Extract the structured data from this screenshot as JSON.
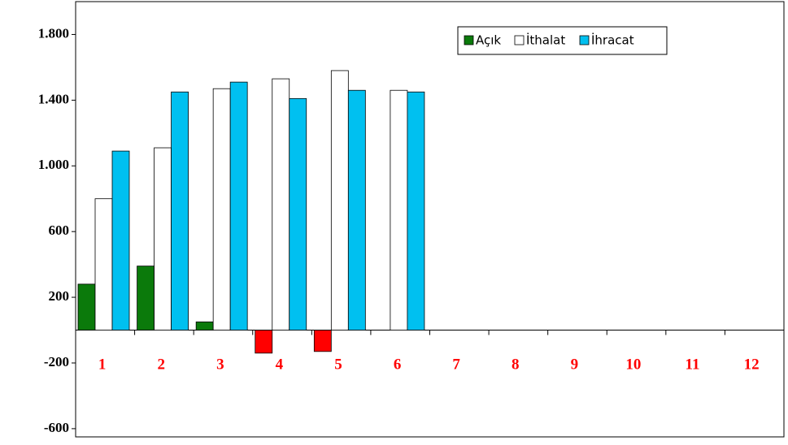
{
  "chart_data": {
    "type": "bar",
    "categories": [
      "1",
      "2",
      "3",
      "4",
      "5",
      "6",
      "7",
      "8",
      "9",
      "10",
      "11",
      "12"
    ],
    "series": [
      {
        "name": "Açık",
        "color": "#0b7a0b",
        "negative_color": "#ff0000",
        "values": [
          280,
          390,
          50,
          -140,
          -130,
          null,
          null,
          null,
          null,
          null,
          null,
          null
        ]
      },
      {
        "name": "İthalat",
        "color": "#ffffff",
        "values": [
          800,
          1110,
          1470,
          1530,
          1580,
          1460,
          null,
          null,
          null,
          null,
          null,
          null
        ]
      },
      {
        "name": "İhracat",
        "color": "#00c0f0",
        "values": [
          1090,
          1450,
          1510,
          1410,
          1460,
          1450,
          null,
          null,
          null,
          null,
          null,
          null
        ]
      }
    ],
    "ylim": [
      -650,
      2000
    ],
    "yticks": [
      {
        "value": -600,
        "label": "-600"
      },
      {
        "value": -200,
        "label": "-200"
      },
      200,
      600,
      {
        "value": 1000,
        "label": "1.000"
      },
      {
        "value": 1400,
        "label": "1.400"
      },
      {
        "value": 1800,
        "label": "1.800"
      }
    ],
    "category_label_color": "#ff0000",
    "legend": "top-right"
  }
}
